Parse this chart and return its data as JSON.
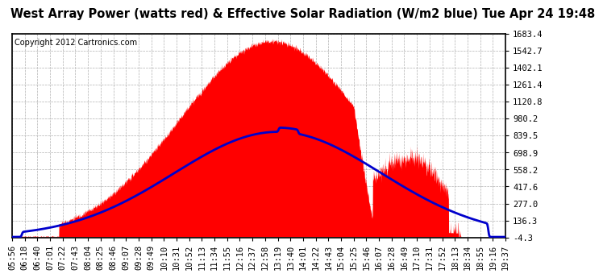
{
  "title": "West Array Power (watts red) & Effective Solar Radiation (W/m2 blue) Tue Apr 24 19:48",
  "copyright": "Copyright 2012 Cartronics.com",
  "background_color": "#ffffff",
  "plot_bg_color": "#ffffff",
  "grid_color": "#b0b0b0",
  "ymin": -4.3,
  "ymax": 1683.4,
  "yticks": [
    1683.4,
    1542.7,
    1402.1,
    1261.4,
    1120.8,
    980.2,
    839.5,
    698.9,
    558.2,
    417.6,
    277.0,
    136.3,
    -4.3
  ],
  "x_labels": [
    "05:56",
    "06:18",
    "06:40",
    "07:01",
    "07:22",
    "07:43",
    "08:04",
    "08:25",
    "08:46",
    "09:07",
    "09:28",
    "09:49",
    "10:10",
    "10:31",
    "10:52",
    "11:13",
    "11:34",
    "11:55",
    "12:16",
    "12:37",
    "12:58",
    "13:19",
    "13:40",
    "14:01",
    "14:22",
    "14:43",
    "15:04",
    "15:25",
    "15:46",
    "16:07",
    "16:28",
    "16:49",
    "17:10",
    "17:31",
    "17:52",
    "18:13",
    "18:34",
    "18:55",
    "19:16",
    "19:37"
  ],
  "fill_color": "#ff0000",
  "line_color": "#0000cc",
  "title_fontsize": 10.5,
  "copyright_fontsize": 7,
  "tick_fontsize": 7.5
}
